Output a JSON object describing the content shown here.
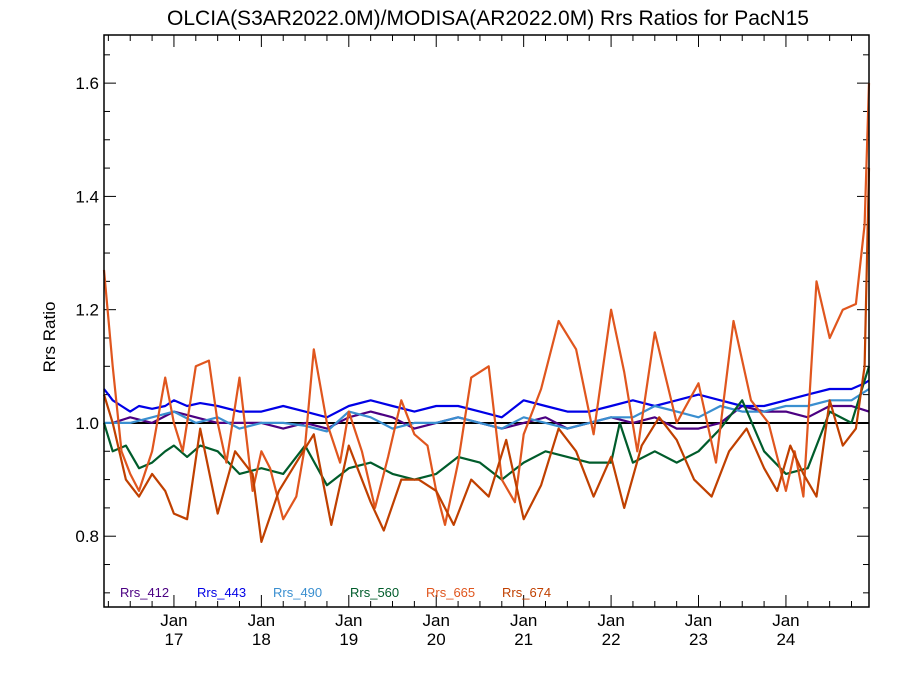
{
  "chart_data": {
    "type": "line",
    "title": "OLCIA(S3AR2022.0M)/MODISA(AR2022.0M)  Rrs Ratios for PacN15",
    "ylabel": "Rrs Ratio",
    "xlabel": "",
    "xlim": [
      2016.2,
      2024.95
    ],
    "ylim": [
      0.675,
      1.685
    ],
    "reference_line": 1.0,
    "grid": false,
    "legend_position": "bottom-left",
    "y_ticks": [
      {
        "value": 0.8,
        "label": "0.8"
      },
      {
        "value": 1.0,
        "label": "1.0"
      },
      {
        "value": 1.2,
        "label": "1.2"
      },
      {
        "value": 1.4,
        "label": "1.4"
      },
      {
        "value": 1.6,
        "label": "1.6"
      }
    ],
    "x_ticks": [
      {
        "value": 2017,
        "month": "Jan",
        "year": "17"
      },
      {
        "value": 2018,
        "month": "Jan",
        "year": "18"
      },
      {
        "value": 2019,
        "month": "Jan",
        "year": "19"
      },
      {
        "value": 2020,
        "month": "Jan",
        "year": "20"
      },
      {
        "value": 2021,
        "month": "Jan",
        "year": "21"
      },
      {
        "value": 2022,
        "month": "Jan",
        "year": "22"
      },
      {
        "value": 2023,
        "month": "Jan",
        "year": "23"
      },
      {
        "value": 2024,
        "month": "Jan",
        "year": "24"
      }
    ],
    "series": [
      {
        "name": "Rrs_412",
        "color": "#4B0082",
        "x": [
          2016.3,
          2016.5,
          2016.75,
          2017.0,
          2017.25,
          2017.5,
          2017.75,
          2018.0,
          2018.25,
          2018.5,
          2018.75,
          2019.0,
          2019.25,
          2019.5,
          2019.75,
          2020.0,
          2020.25,
          2020.5,
          2020.75,
          2021.0,
          2021.25,
          2021.5,
          2021.75,
          2022.0,
          2022.25,
          2022.5,
          2022.75,
          2023.0,
          2023.25,
          2023.5,
          2023.75,
          2024.0,
          2024.25,
          2024.5,
          2024.75,
          2024.95
        ],
        "y": [
          1.0,
          1.01,
          1.0,
          1.02,
          1.01,
          1.0,
          1.0,
          1.0,
          0.99,
          1.0,
          0.99,
          1.01,
          1.02,
          1.01,
          0.99,
          1.0,
          1.01,
          1.0,
          0.99,
          1.0,
          1.01,
          0.99,
          1.0,
          1.01,
          1.0,
          1.01,
          0.99,
          0.99,
          1.0,
          1.03,
          1.02,
          1.02,
          1.01,
          1.03,
          1.03,
          1.02
        ]
      },
      {
        "name": "Rrs_443",
        "color": "#0000E6",
        "x": [
          2016.2,
          2016.25,
          2016.3,
          2016.4,
          2016.5,
          2016.6,
          2016.75,
          2016.9,
          2017.0,
          2017.15,
          2017.3,
          2017.5,
          2017.75,
          2018.0,
          2018.25,
          2018.5,
          2018.75,
          2019.0,
          2019.25,
          2019.5,
          2019.75,
          2020.0,
          2020.25,
          2020.5,
          2020.75,
          2021.0,
          2021.25,
          2021.5,
          2021.75,
          2022.0,
          2022.25,
          2022.5,
          2022.75,
          2023.0,
          2023.25,
          2023.5,
          2023.75,
          2024.0,
          2024.25,
          2024.5,
          2024.75,
          2024.9,
          2024.95
        ],
        "y": [
          1.06,
          1.05,
          1.04,
          1.03,
          1.02,
          1.03,
          1.025,
          1.03,
          1.04,
          1.03,
          1.035,
          1.03,
          1.02,
          1.02,
          1.03,
          1.02,
          1.01,
          1.03,
          1.04,
          1.03,
          1.02,
          1.03,
          1.03,
          1.02,
          1.01,
          1.04,
          1.03,
          1.02,
          1.02,
          1.03,
          1.04,
          1.03,
          1.04,
          1.05,
          1.04,
          1.03,
          1.03,
          1.04,
          1.05,
          1.06,
          1.06,
          1.07,
          1.075
        ]
      },
      {
        "name": "Rrs_490",
        "color": "#3A8FD0",
        "x": [
          2016.2,
          2016.5,
          2016.75,
          2017.0,
          2017.25,
          2017.5,
          2017.75,
          2018.0,
          2018.25,
          2018.5,
          2018.75,
          2019.0,
          2019.25,
          2019.5,
          2019.75,
          2020.0,
          2020.25,
          2020.5,
          2020.75,
          2021.0,
          2021.25,
          2021.5,
          2021.75,
          2022.0,
          2022.25,
          2022.5,
          2022.75,
          2023.0,
          2023.25,
          2023.5,
          2023.75,
          2024.0,
          2024.25,
          2024.5,
          2024.75,
          2024.95
        ],
        "y": [
          1.0,
          1.0,
          1.01,
          1.02,
          1.0,
          1.01,
          0.99,
          1.0,
          1.0,
          0.995,
          0.985,
          1.02,
          1.01,
          0.99,
          1.0,
          1.0,
          1.01,
          1.0,
          0.99,
          1.01,
          1.0,
          0.99,
          1.0,
          1.01,
          1.01,
          1.03,
          1.02,
          1.01,
          1.03,
          1.02,
          1.02,
          1.03,
          1.03,
          1.04,
          1.04,
          1.06
        ]
      },
      {
        "name": "Rrs_560",
        "color": "#005C2B",
        "x": [
          2016.2,
          2016.3,
          2016.45,
          2016.6,
          2016.75,
          2016.9,
          2017.0,
          2017.15,
          2017.3,
          2017.5,
          2017.75,
          2018.0,
          2018.25,
          2018.5,
          2018.75,
          2019.0,
          2019.25,
          2019.5,
          2019.75,
          2020.0,
          2020.25,
          2020.5,
          2020.75,
          2021.0,
          2021.25,
          2021.5,
          2021.75,
          2022.0,
          2022.1,
          2022.25,
          2022.5,
          2022.75,
          2023.0,
          2023.25,
          2023.5,
          2023.75,
          2024.0,
          2024.25,
          2024.5,
          2024.75,
          2024.95
        ],
        "y": [
          1.0,
          0.95,
          0.96,
          0.92,
          0.93,
          0.95,
          0.96,
          0.94,
          0.96,
          0.95,
          0.91,
          0.92,
          0.91,
          0.96,
          0.89,
          0.92,
          0.93,
          0.91,
          0.9,
          0.91,
          0.94,
          0.93,
          0.9,
          0.93,
          0.95,
          0.94,
          0.93,
          0.93,
          1.0,
          0.93,
          0.95,
          0.93,
          0.95,
          0.99,
          1.04,
          0.95,
          0.91,
          0.92,
          1.02,
          1.0,
          1.1
        ]
      },
      {
        "name": "Rrs_665",
        "color": "#E0561E",
        "x": [
          2016.2,
          2016.3,
          2016.4,
          2016.5,
          2016.6,
          2016.75,
          2016.9,
          2017.0,
          2017.1,
          2017.25,
          2017.4,
          2017.5,
          2017.6,
          2017.75,
          2017.9,
          2018.0,
          2018.1,
          2018.25,
          2018.4,
          2018.5,
          2018.6,
          2018.75,
          2018.9,
          2019.0,
          2019.15,
          2019.3,
          2019.45,
          2019.6,
          2019.75,
          2019.9,
          2020.0,
          2020.1,
          2020.25,
          2020.4,
          2020.6,
          2020.75,
          2020.9,
          2021.0,
          2021.2,
          2021.4,
          2021.6,
          2021.8,
          2022.0,
          2022.15,
          2022.3,
          2022.5,
          2022.75,
          2023.0,
          2023.2,
          2023.4,
          2023.6,
          2023.8,
          2024.0,
          2024.1,
          2024.2,
          2024.35,
          2024.5,
          2024.65,
          2024.8,
          2024.9,
          2024.95
        ],
        "y": [
          1.27,
          1.1,
          0.95,
          0.91,
          0.88,
          0.95,
          1.08,
          1.0,
          0.95,
          1.1,
          1.11,
          1.0,
          0.93,
          1.08,
          0.88,
          0.95,
          0.92,
          0.83,
          0.87,
          0.96,
          1.13,
          1.0,
          0.93,
          1.02,
          0.95,
          0.85,
          0.94,
          1.04,
          0.98,
          0.96,
          0.88,
          0.82,
          0.93,
          1.08,
          1.1,
          0.9,
          0.86,
          0.98,
          1.06,
          1.18,
          1.13,
          0.98,
          1.2,
          1.09,
          0.95,
          1.16,
          1.0,
          1.07,
          0.93,
          1.18,
          1.04,
          1.0,
          0.88,
          0.95,
          0.87,
          1.25,
          1.15,
          1.2,
          1.21,
          1.35,
          1.6
        ]
      },
      {
        "name": "Rrs_674",
        "color": "#C04000",
        "x": [
          2016.2,
          2016.3,
          2016.45,
          2016.6,
          2016.75,
          2016.9,
          2017.0,
          2017.15,
          2017.3,
          2017.5,
          2017.7,
          2017.9,
          2018.0,
          2018.2,
          2018.4,
          2018.6,
          2018.8,
          2019.0,
          2019.1,
          2019.25,
          2019.4,
          2019.6,
          2019.8,
          2020.0,
          2020.2,
          2020.4,
          2020.6,
          2020.8,
          2021.0,
          2021.2,
          2021.4,
          2021.6,
          2021.8,
          2022.0,
          2022.15,
          2022.35,
          2022.55,
          2022.75,
          2022.95,
          2023.15,
          2023.35,
          2023.55,
          2023.75,
          2023.9,
          2024.05,
          2024.2,
          2024.35,
          2024.5,
          2024.65,
          2024.8,
          2024.9,
          2024.95
        ],
        "y": [
          1.05,
          1.0,
          0.9,
          0.87,
          0.91,
          0.88,
          0.84,
          0.83,
          0.99,
          0.84,
          0.95,
          0.91,
          0.79,
          0.88,
          0.93,
          0.98,
          0.82,
          0.96,
          0.92,
          0.86,
          0.81,
          0.9,
          0.9,
          0.88,
          0.82,
          0.9,
          0.87,
          0.97,
          0.83,
          0.89,
          0.99,
          0.95,
          0.87,
          0.94,
          0.85,
          0.96,
          1.01,
          0.97,
          0.9,
          0.87,
          0.95,
          0.99,
          0.92,
          0.88,
          0.96,
          0.91,
          0.87,
          1.04,
          0.96,
          0.99,
          1.1,
          1.45
        ]
      }
    ]
  }
}
